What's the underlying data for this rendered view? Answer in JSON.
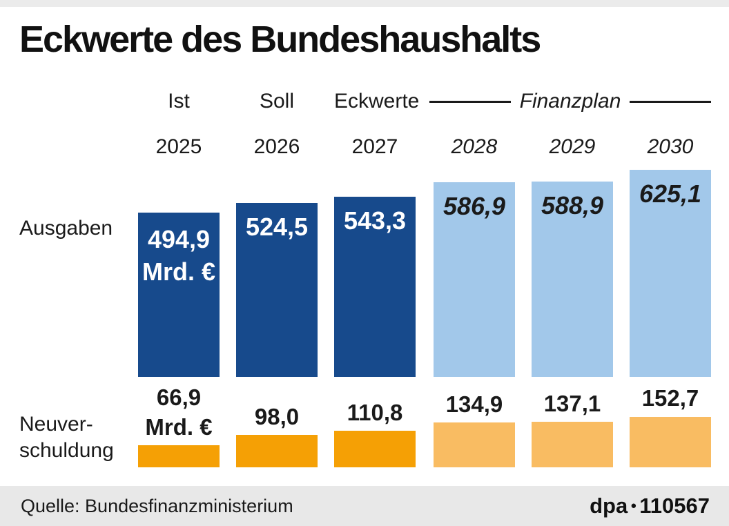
{
  "title": "Eckwerte des Bundeshaushalts",
  "rows": {
    "expenditure_label": "Ausgaben",
    "debt_label_line1": "Neuver-",
    "debt_label_line2": "schuldung"
  },
  "footer": {
    "source": "Quelle: Bundesfinanzministerium",
    "brand": "dpa",
    "separator": "●",
    "graphic_number": "110567"
  },
  "colors": {
    "expenditure_actual": "#174a8c",
    "expenditure_plan": "#a2c8ea",
    "debt_actual": "#f5a005",
    "debt_plan": "#f9bc62",
    "footer_bg": "#e8e8e8",
    "rule": "#1a1a1a"
  },
  "chart_data": {
    "type": "bar",
    "title": "Eckwerte des Bundeshaushalts",
    "unit": "Mrd. €",
    "unit_shown_on_first_column_only": true,
    "categories": [
      "2025",
      "2026",
      "2027",
      "2028",
      "2029",
      "2030"
    ],
    "plan_columns": [
      3,
      4,
      5
    ],
    "period_headers": [
      {
        "label": "Ist",
        "columns": [
          0
        ]
      },
      {
        "label": "Soll",
        "columns": [
          1
        ]
      },
      {
        "label": "Eckwerte",
        "columns": [
          2
        ]
      },
      {
        "label": "Finanzplan",
        "columns": [
          3,
          4,
          5
        ],
        "italic": true,
        "decorated_with_rules": true
      }
    ],
    "series": [
      {
        "name": "Ausgaben",
        "values": [
          494.9,
          524.5,
          543.3,
          586.9,
          588.9,
          625.1
        ],
        "display_labels": [
          "494,9",
          "524,5",
          "543,3",
          "586,9",
          "588,9",
          "625,1"
        ]
      },
      {
        "name": "Neuverschuldung",
        "values": [
          66.9,
          98.0,
          110.8,
          134.9,
          137.1,
          152.7
        ],
        "display_labels": [
          "66,9",
          "98,0",
          "110,8",
          "134,9",
          "137,1",
          "152,7"
        ]
      }
    ],
    "grid": false,
    "legend_position": "none",
    "value_axis_hidden": true
  }
}
